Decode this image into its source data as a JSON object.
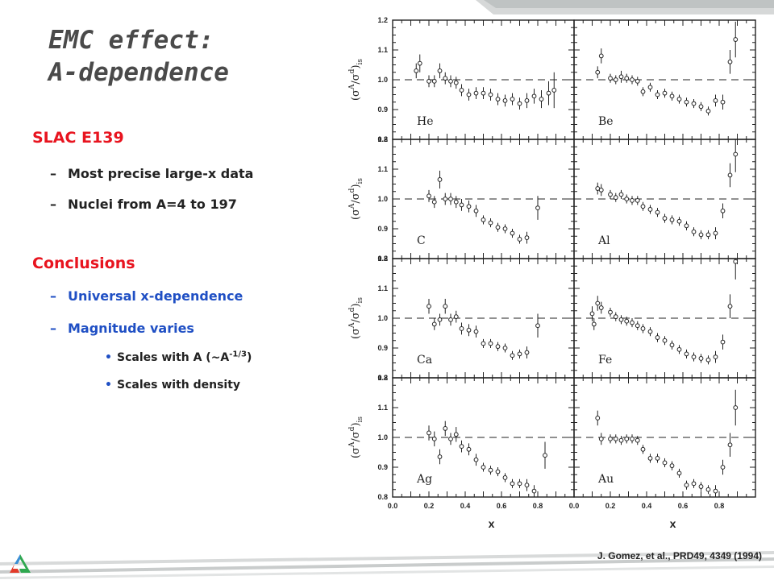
{
  "slide": {
    "title_line1": "EMC effect:",
    "title_line2": "A-dependence",
    "bullets": {
      "section1": "SLAC E139",
      "section1_items": [
        "Most precise large-x data",
        "Nuclei from A=4 to 197"
      ],
      "section2": "Conclusions",
      "section2_items": [
        "Universal x-dependence",
        "Magnitude varies"
      ],
      "sub_item1_prefix": "Scales with A (~A",
      "sub_item1_sup": "-1/3",
      "sub_item1_suffix": ")",
      "sub_item2": "Scales with density"
    },
    "citation": "J. Gomez, et al., PRD49, 4349 (1994)",
    "colors": {
      "title": "#4a4a4a",
      "section": "#e8141f",
      "emphasis": "#1f4fc4",
      "text": "#222222"
    },
    "logo_icon": "argonne-triangle-logo"
  },
  "chart_data": {
    "type": "scatter",
    "ylabel": "(σ^A/σ^d)_is",
    "ylabel_parts": {
      "open": "(",
      "sigma": "σ",
      "A": "A",
      "slash": "/",
      "d": "d",
      "close": ")",
      "sub": "is"
    },
    "xlabel": "x",
    "xlim": [
      0,
      1
    ],
    "ylim": [
      0.8,
      1.2
    ],
    "x_ticks": [
      "0.0",
      "0.2",
      "0.4",
      "0.6",
      "0.8"
    ],
    "y_ticks": [
      "0.8",
      "0.9",
      "1.0",
      "1.1",
      "1.2"
    ],
    "reference_line": 1.0,
    "grid": false,
    "panels": [
      {
        "name": "He",
        "points": [
          {
            "x": 0.13,
            "y": 1.03,
            "err": 0.025
          },
          {
            "x": 0.15,
            "y": 1.055,
            "err": 0.03
          },
          {
            "x": 0.2,
            "y": 0.995,
            "err": 0.02
          },
          {
            "x": 0.23,
            "y": 0.995,
            "err": 0.02
          },
          {
            "x": 0.26,
            "y": 1.03,
            "err": 0.025
          },
          {
            "x": 0.29,
            "y": 1.005,
            "err": 0.02
          },
          {
            "x": 0.32,
            "y": 0.995,
            "err": 0.02
          },
          {
            "x": 0.35,
            "y": 0.99,
            "err": 0.02
          },
          {
            "x": 0.38,
            "y": 0.965,
            "err": 0.02
          },
          {
            "x": 0.42,
            "y": 0.95,
            "err": 0.02
          },
          {
            "x": 0.46,
            "y": 0.955,
            "err": 0.02
          },
          {
            "x": 0.5,
            "y": 0.955,
            "err": 0.02
          },
          {
            "x": 0.54,
            "y": 0.95,
            "err": 0.02
          },
          {
            "x": 0.58,
            "y": 0.935,
            "err": 0.02
          },
          {
            "x": 0.62,
            "y": 0.93,
            "err": 0.02
          },
          {
            "x": 0.66,
            "y": 0.935,
            "err": 0.02
          },
          {
            "x": 0.7,
            "y": 0.92,
            "err": 0.02
          },
          {
            "x": 0.74,
            "y": 0.93,
            "err": 0.025
          },
          {
            "x": 0.78,
            "y": 0.945,
            "err": 0.025
          },
          {
            "x": 0.82,
            "y": 0.935,
            "err": 0.03
          },
          {
            "x": 0.86,
            "y": 0.955,
            "err": 0.04
          },
          {
            "x": 0.89,
            "y": 0.965,
            "err": 0.06
          }
        ]
      },
      {
        "name": "Be",
        "points": [
          {
            "x": 0.13,
            "y": 1.025,
            "err": 0.02
          },
          {
            "x": 0.15,
            "y": 1.08,
            "err": 0.025
          },
          {
            "x": 0.2,
            "y": 1.005,
            "err": 0.015
          },
          {
            "x": 0.23,
            "y": 1.0,
            "err": 0.015
          },
          {
            "x": 0.26,
            "y": 1.01,
            "err": 0.02
          },
          {
            "x": 0.29,
            "y": 1.005,
            "err": 0.015
          },
          {
            "x": 0.32,
            "y": 1.0,
            "err": 0.015
          },
          {
            "x": 0.35,
            "y": 0.995,
            "err": 0.015
          },
          {
            "x": 0.38,
            "y": 0.96,
            "err": 0.015
          },
          {
            "x": 0.42,
            "y": 0.975,
            "err": 0.015
          },
          {
            "x": 0.46,
            "y": 0.95,
            "err": 0.015
          },
          {
            "x": 0.5,
            "y": 0.955,
            "err": 0.015
          },
          {
            "x": 0.54,
            "y": 0.945,
            "err": 0.015
          },
          {
            "x": 0.58,
            "y": 0.935,
            "err": 0.015
          },
          {
            "x": 0.62,
            "y": 0.925,
            "err": 0.015
          },
          {
            "x": 0.66,
            "y": 0.92,
            "err": 0.015
          },
          {
            "x": 0.7,
            "y": 0.91,
            "err": 0.015
          },
          {
            "x": 0.74,
            "y": 0.895,
            "err": 0.015
          },
          {
            "x": 0.78,
            "y": 0.93,
            "err": 0.02
          },
          {
            "x": 0.82,
            "y": 0.925,
            "err": 0.025
          },
          {
            "x": 0.86,
            "y": 1.06,
            "err": 0.04
          },
          {
            "x": 0.89,
            "y": 1.135,
            "err": 0.06
          }
        ]
      },
      {
        "name": "C",
        "points": [
          {
            "x": 0.2,
            "y": 1.01,
            "err": 0.02
          },
          {
            "x": 0.23,
            "y": 0.99,
            "err": 0.02
          },
          {
            "x": 0.26,
            "y": 1.065,
            "err": 0.03
          },
          {
            "x": 0.29,
            "y": 1.0,
            "err": 0.02
          },
          {
            "x": 0.32,
            "y": 1.0,
            "err": 0.02
          },
          {
            "x": 0.35,
            "y": 0.99,
            "err": 0.02
          },
          {
            "x": 0.38,
            "y": 0.98,
            "err": 0.02
          },
          {
            "x": 0.42,
            "y": 0.975,
            "err": 0.02
          },
          {
            "x": 0.46,
            "y": 0.96,
            "err": 0.02
          },
          {
            "x": 0.5,
            "y": 0.93,
            "err": 0.015
          },
          {
            "x": 0.54,
            "y": 0.92,
            "err": 0.015
          },
          {
            "x": 0.58,
            "y": 0.905,
            "err": 0.015
          },
          {
            "x": 0.62,
            "y": 0.9,
            "err": 0.015
          },
          {
            "x": 0.66,
            "y": 0.885,
            "err": 0.015
          },
          {
            "x": 0.7,
            "y": 0.865,
            "err": 0.015
          },
          {
            "x": 0.74,
            "y": 0.87,
            "err": 0.02
          },
          {
            "x": 0.8,
            "y": 0.97,
            "err": 0.04
          }
        ]
      },
      {
        "name": "Al",
        "points": [
          {
            "x": 0.13,
            "y": 1.035,
            "err": 0.02
          },
          {
            "x": 0.15,
            "y": 1.03,
            "err": 0.02
          },
          {
            "x": 0.2,
            "y": 1.015,
            "err": 0.015
          },
          {
            "x": 0.23,
            "y": 1.005,
            "err": 0.015
          },
          {
            "x": 0.26,
            "y": 1.015,
            "err": 0.015
          },
          {
            "x": 0.29,
            "y": 1.0,
            "err": 0.015
          },
          {
            "x": 0.32,
            "y": 0.995,
            "err": 0.015
          },
          {
            "x": 0.35,
            "y": 0.995,
            "err": 0.015
          },
          {
            "x": 0.38,
            "y": 0.975,
            "err": 0.015
          },
          {
            "x": 0.42,
            "y": 0.965,
            "err": 0.015
          },
          {
            "x": 0.46,
            "y": 0.955,
            "err": 0.015
          },
          {
            "x": 0.5,
            "y": 0.935,
            "err": 0.015
          },
          {
            "x": 0.54,
            "y": 0.93,
            "err": 0.015
          },
          {
            "x": 0.58,
            "y": 0.925,
            "err": 0.015
          },
          {
            "x": 0.62,
            "y": 0.91,
            "err": 0.015
          },
          {
            "x": 0.66,
            "y": 0.89,
            "err": 0.015
          },
          {
            "x": 0.7,
            "y": 0.88,
            "err": 0.015
          },
          {
            "x": 0.74,
            "y": 0.88,
            "err": 0.015
          },
          {
            "x": 0.78,
            "y": 0.885,
            "err": 0.02
          },
          {
            "x": 0.82,
            "y": 0.96,
            "err": 0.025
          },
          {
            "x": 0.86,
            "y": 1.08,
            "err": 0.04
          },
          {
            "x": 0.89,
            "y": 1.15,
            "err": 0.06
          }
        ]
      },
      {
        "name": "Ca",
        "points": [
          {
            "x": 0.2,
            "y": 1.04,
            "err": 0.025
          },
          {
            "x": 0.23,
            "y": 0.98,
            "err": 0.02
          },
          {
            "x": 0.26,
            "y": 0.995,
            "err": 0.02
          },
          {
            "x": 0.29,
            "y": 1.04,
            "err": 0.025
          },
          {
            "x": 0.32,
            "y": 0.995,
            "err": 0.02
          },
          {
            "x": 0.35,
            "y": 1.005,
            "err": 0.02
          },
          {
            "x": 0.38,
            "y": 0.965,
            "err": 0.02
          },
          {
            "x": 0.42,
            "y": 0.96,
            "err": 0.02
          },
          {
            "x": 0.46,
            "y": 0.955,
            "err": 0.02
          },
          {
            "x": 0.5,
            "y": 0.915,
            "err": 0.015
          },
          {
            "x": 0.54,
            "y": 0.915,
            "err": 0.015
          },
          {
            "x": 0.58,
            "y": 0.905,
            "err": 0.015
          },
          {
            "x": 0.62,
            "y": 0.9,
            "err": 0.015
          },
          {
            "x": 0.66,
            "y": 0.875,
            "err": 0.015
          },
          {
            "x": 0.7,
            "y": 0.88,
            "err": 0.015
          },
          {
            "x": 0.74,
            "y": 0.885,
            "err": 0.02
          },
          {
            "x": 0.8,
            "y": 0.975,
            "err": 0.04
          }
        ]
      },
      {
        "name": "Fe",
        "points": [
          {
            "x": 0.1,
            "y": 1.015,
            "err": 0.025
          },
          {
            "x": 0.11,
            "y": 0.98,
            "err": 0.02
          },
          {
            "x": 0.13,
            "y": 1.05,
            "err": 0.025
          },
          {
            "x": 0.15,
            "y": 1.035,
            "err": 0.02
          },
          {
            "x": 0.2,
            "y": 1.02,
            "err": 0.015
          },
          {
            "x": 0.23,
            "y": 1.005,
            "err": 0.015
          },
          {
            "x": 0.26,
            "y": 0.995,
            "err": 0.015
          },
          {
            "x": 0.29,
            "y": 0.99,
            "err": 0.015
          },
          {
            "x": 0.32,
            "y": 0.985,
            "err": 0.015
          },
          {
            "x": 0.35,
            "y": 0.975,
            "err": 0.015
          },
          {
            "x": 0.38,
            "y": 0.965,
            "err": 0.015
          },
          {
            "x": 0.42,
            "y": 0.955,
            "err": 0.015
          },
          {
            "x": 0.46,
            "y": 0.935,
            "err": 0.015
          },
          {
            "x": 0.5,
            "y": 0.925,
            "err": 0.015
          },
          {
            "x": 0.54,
            "y": 0.91,
            "err": 0.015
          },
          {
            "x": 0.58,
            "y": 0.895,
            "err": 0.015
          },
          {
            "x": 0.62,
            "y": 0.88,
            "err": 0.015
          },
          {
            "x": 0.66,
            "y": 0.87,
            "err": 0.015
          },
          {
            "x": 0.7,
            "y": 0.865,
            "err": 0.015
          },
          {
            "x": 0.74,
            "y": 0.86,
            "err": 0.015
          },
          {
            "x": 0.78,
            "y": 0.87,
            "err": 0.02
          },
          {
            "x": 0.82,
            "y": 0.92,
            "err": 0.025
          },
          {
            "x": 0.86,
            "y": 1.04,
            "err": 0.04
          },
          {
            "x": 0.89,
            "y": 1.19,
            "err": 0.06
          }
        ]
      },
      {
        "name": "Ag",
        "points": [
          {
            "x": 0.2,
            "y": 1.015,
            "err": 0.025
          },
          {
            "x": 0.23,
            "y": 0.995,
            "err": 0.025
          },
          {
            "x": 0.26,
            "y": 0.935,
            "err": 0.025
          },
          {
            "x": 0.29,
            "y": 1.03,
            "err": 0.025
          },
          {
            "x": 0.32,
            "y": 0.995,
            "err": 0.02
          },
          {
            "x": 0.35,
            "y": 1.01,
            "err": 0.025
          },
          {
            "x": 0.38,
            "y": 0.97,
            "err": 0.02
          },
          {
            "x": 0.42,
            "y": 0.96,
            "err": 0.02
          },
          {
            "x": 0.46,
            "y": 0.925,
            "err": 0.02
          },
          {
            "x": 0.5,
            "y": 0.9,
            "err": 0.015
          },
          {
            "x": 0.54,
            "y": 0.89,
            "err": 0.015
          },
          {
            "x": 0.58,
            "y": 0.885,
            "err": 0.015
          },
          {
            "x": 0.62,
            "y": 0.865,
            "err": 0.015
          },
          {
            "x": 0.66,
            "y": 0.845,
            "err": 0.015
          },
          {
            "x": 0.7,
            "y": 0.845,
            "err": 0.015
          },
          {
            "x": 0.74,
            "y": 0.84,
            "err": 0.02
          },
          {
            "x": 0.78,
            "y": 0.82,
            "err": 0.02
          },
          {
            "x": 0.84,
            "y": 0.94,
            "err": 0.045
          }
        ]
      },
      {
        "name": "Au",
        "points": [
          {
            "x": 0.13,
            "y": 1.065,
            "err": 0.025
          },
          {
            "x": 0.15,
            "y": 0.995,
            "err": 0.02
          },
          {
            "x": 0.2,
            "y": 0.995,
            "err": 0.015
          },
          {
            "x": 0.23,
            "y": 0.995,
            "err": 0.015
          },
          {
            "x": 0.26,
            "y": 0.99,
            "err": 0.015
          },
          {
            "x": 0.29,
            "y": 0.995,
            "err": 0.015
          },
          {
            "x": 0.32,
            "y": 0.995,
            "err": 0.015
          },
          {
            "x": 0.35,
            "y": 0.99,
            "err": 0.015
          },
          {
            "x": 0.38,
            "y": 0.96,
            "err": 0.015
          },
          {
            "x": 0.42,
            "y": 0.93,
            "err": 0.015
          },
          {
            "x": 0.46,
            "y": 0.93,
            "err": 0.015
          },
          {
            "x": 0.5,
            "y": 0.915,
            "err": 0.015
          },
          {
            "x": 0.54,
            "y": 0.905,
            "err": 0.015
          },
          {
            "x": 0.58,
            "y": 0.88,
            "err": 0.015
          },
          {
            "x": 0.62,
            "y": 0.84,
            "err": 0.015
          },
          {
            "x": 0.66,
            "y": 0.845,
            "err": 0.015
          },
          {
            "x": 0.7,
            "y": 0.835,
            "err": 0.015
          },
          {
            "x": 0.74,
            "y": 0.825,
            "err": 0.015
          },
          {
            "x": 0.78,
            "y": 0.82,
            "err": 0.02
          },
          {
            "x": 0.82,
            "y": 0.9,
            "err": 0.025
          },
          {
            "x": 0.86,
            "y": 0.975,
            "err": 0.04
          },
          {
            "x": 0.89,
            "y": 1.1,
            "err": 0.06
          }
        ]
      }
    ]
  }
}
